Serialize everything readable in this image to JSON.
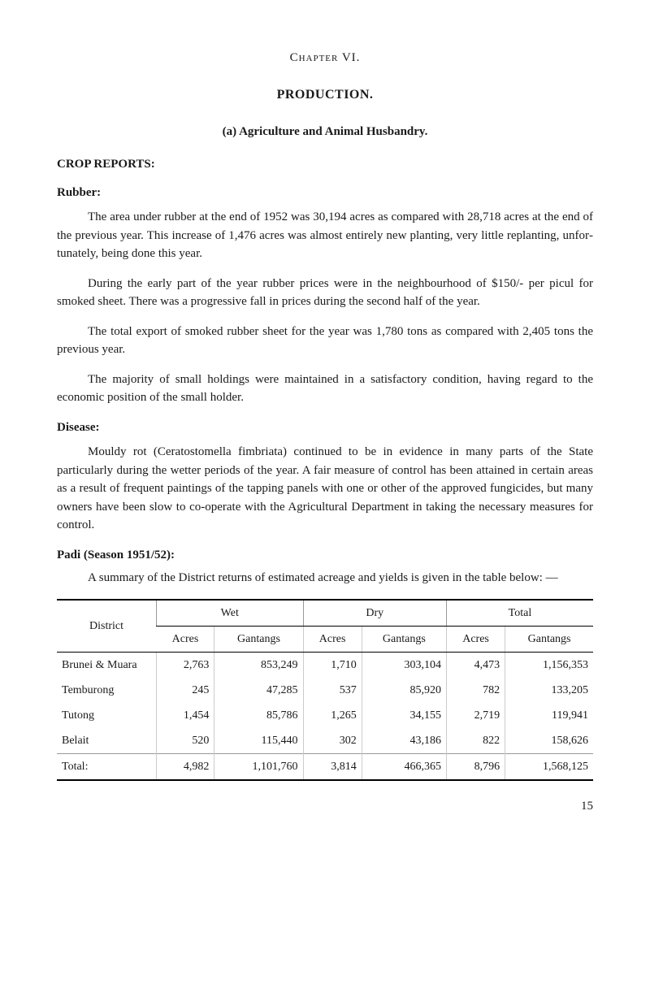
{
  "chapter": "Chapter VI.",
  "title": "PRODUCTION.",
  "subsection_a": "(a) Agriculture and Animal Husbandry.",
  "crop_reports_heading": "CROP REPORTS:",
  "rubber": {
    "heading": "Rubber:",
    "p1": "The area under rubber at the end of 1952 was 30,194 acres as com­pared with 28,718 acres at the end of the previous year. This increase of 1,476 acres was almost entirely new planting, very little replanting, unfor­tunately, being done this year.",
    "p2": "During the early part of the year rubber prices were in the neigh­bourhood of $150/- per picul for smoked sheet. There was a progressive fall in prices during the second half of the year.",
    "p3": "The total export of smoked rubber sheet for the year was 1,780 tons as compared with 2,405 tons the previous year.",
    "p4": "The majority of small holdings were maintained in a satisfactory con­dition, having regard to the economic position of the small holder."
  },
  "disease": {
    "heading": "Disease:",
    "p1": "Mouldy rot (Ceratostomella fimbriata) continued to be in evidence in many parts of the State particularly during the wetter periods of the year. A fair measure of control has been attained in certain areas as a result of frequent paintings of the tapping panels with one or other of the approved fungicides, but many owners have been slow to co-operate with the Agricul­tural Department in taking the necessary measures for control."
  },
  "padi": {
    "heading": "Padi (Season 1951/52):",
    "intro": "A summary of the District returns of estimated acreage and yields is given in the table below: —"
  },
  "table": {
    "district_label": "District",
    "groups": [
      "Wet",
      "Dry",
      "Total"
    ],
    "sub_headers": [
      "Acres",
      "Gantangs"
    ],
    "rows": [
      {
        "district": "Brunei & Muara",
        "wet_acres": "2,763",
        "wet_g": "853,249",
        "dry_acres": "1,710",
        "dry_g": "303,104",
        "tot_acres": "4,473",
        "tot_g": "1,156,353"
      },
      {
        "district": "Temburong",
        "wet_acres": "245",
        "wet_g": "47,285",
        "dry_acres": "537",
        "dry_g": "85,920",
        "tot_acres": "782",
        "tot_g": "133,205"
      },
      {
        "district": "Tutong",
        "wet_acres": "1,454",
        "wet_g": "85,786",
        "dry_acres": "1,265",
        "dry_g": "34,155",
        "tot_acres": "2,719",
        "tot_g": "119,941"
      },
      {
        "district": "Belait",
        "wet_acres": "520",
        "wet_g": "115,440",
        "dry_acres": "302",
        "dry_g": "43,186",
        "tot_acres": "822",
        "tot_g": "158,626"
      }
    ],
    "total": {
      "label": "Total:",
      "wet_acres": "4,982",
      "wet_g": "1,101,760",
      "dry_acres": "3,814",
      "dry_g": "466,365",
      "tot_acres": "8,796",
      "tot_g": "1,568,125"
    }
  },
  "page_number": "15"
}
